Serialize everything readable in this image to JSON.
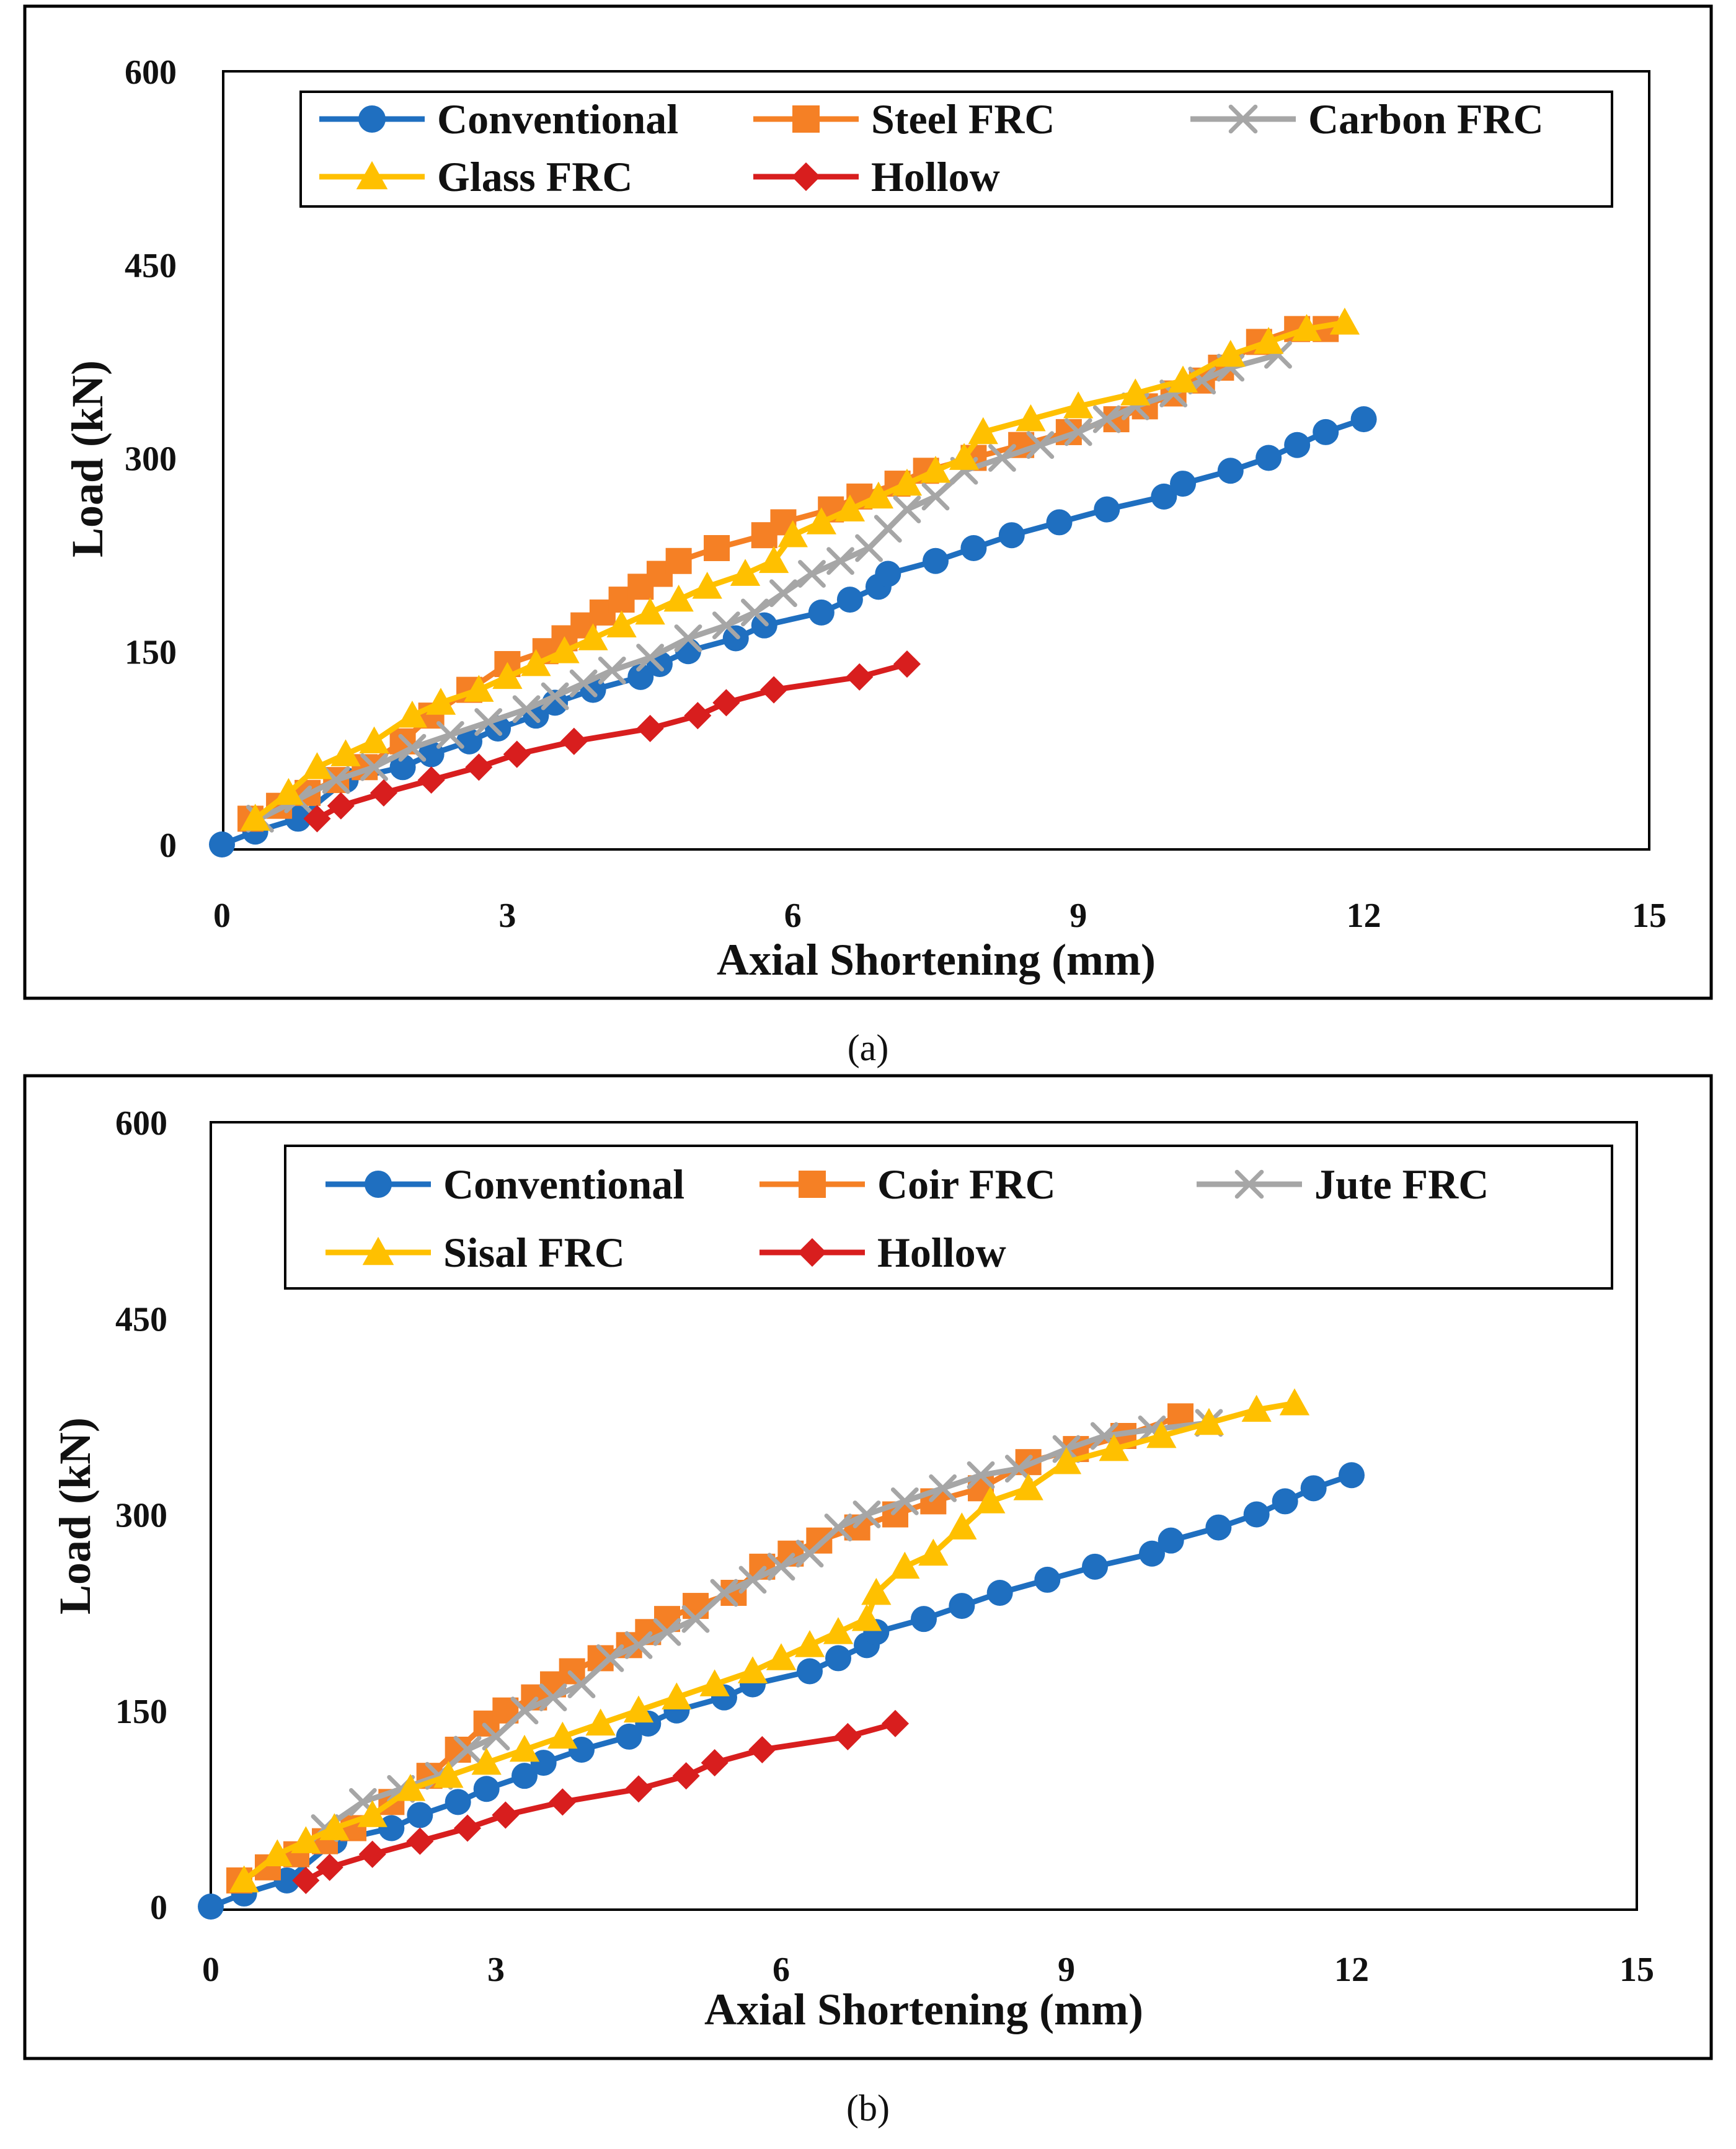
{
  "figure": {
    "panels": [
      "(a)",
      "(b)"
    ]
  },
  "colors": {
    "Conventional": "#1F6FC0",
    "Steel FRC": "#F58025",
    "Carbon FRC": "#A6A6A6",
    "Glass FRC": "#FFC000",
    "Hollow": "#D81E1E",
    "Coir FRC": "#F58025",
    "Jute FRC": "#A6A6A6",
    "Sisal FRC": "#FFC000"
  },
  "chart_data": [
    {
      "type": "line",
      "caption": "(a)",
      "xlabel": "Axial Shortening (mm)",
      "ylabel": "Load (kN)",
      "xlim": [
        0,
        15
      ],
      "ylim": [
        0,
        600
      ],
      "xticks": [
        "0",
        "3",
        "6",
        "9",
        "12",
        "15"
      ],
      "yticks": [
        "0",
        "150",
        "300",
        "450",
        "600"
      ],
      "grid": false,
      "legend_position": "top",
      "series": [
        {
          "name": "Conventional",
          "marker": "circle",
          "x": [
            0,
            0.35,
            0.8,
            1.3,
            1.9,
            2.2,
            2.6,
            2.9,
            3.3,
            3.5,
            3.9,
            4.4,
            4.6,
            4.9,
            5.4,
            5.7,
            6.3,
            6.6,
            6.9,
            7.0,
            7.5,
            7.9,
            8.3,
            8.8,
            9.3,
            9.9,
            10.1,
            10.6,
            11.0,
            11.3,
            11.6,
            12.0
          ],
          "y": [
            0,
            10,
            20,
            50,
            60,
            70,
            80,
            90,
            100,
            110,
            120,
            130,
            140,
            150,
            160,
            170,
            180,
            190,
            200,
            210,
            220,
            230,
            240,
            250,
            260,
            270,
            280,
            290,
            300,
            310,
            320,
            330
          ]
        },
        {
          "name": "Steel FRC",
          "marker": "square",
          "x": [
            0.3,
            0.6,
            0.9,
            1.2,
            1.5,
            1.9,
            2.2,
            2.6,
            3.0,
            3.4,
            3.6,
            3.8,
            4.0,
            4.2,
            4.4,
            4.6,
            4.8,
            5.2,
            5.7,
            5.9,
            6.4,
            6.7,
            7.1,
            7.4,
            7.9,
            8.4,
            8.9,
            9.4,
            9.7,
            10.0,
            10.3,
            10.5,
            10.9,
            11.3,
            11.6
          ],
          "y": [
            20,
            30,
            40,
            50,
            60,
            80,
            100,
            120,
            140,
            150,
            160,
            170,
            180,
            190,
            200,
            210,
            220,
            230,
            240,
            250,
            260,
            270,
            280,
            290,
            300,
            310,
            320,
            330,
            340,
            350,
            360,
            370,
            390,
            400,
            400
          ]
        },
        {
          "name": "Carbon FRC",
          "marker": "x",
          "x": [
            0.4,
            0.8,
            1.2,
            1.6,
            2.0,
            2.4,
            2.8,
            3.2,
            3.5,
            3.8,
            4.1,
            4.5,
            4.9,
            5.3,
            5.6,
            5.9,
            6.2,
            6.5,
            6.8,
            7.0,
            7.2,
            7.5,
            7.8,
            8.2,
            8.6,
            9.0,
            9.3,
            9.6,
            10.0,
            10.3,
            10.6,
            11.1
          ],
          "y": [
            20,
            35,
            50,
            60,
            75,
            85,
            95,
            105,
            115,
            125,
            135,
            145,
            160,
            170,
            180,
            195,
            210,
            220,
            230,
            245,
            260,
            270,
            290,
            300,
            310,
            320,
            330,
            340,
            350,
            360,
            370,
            380
          ]
        },
        {
          "name": "Glass FRC",
          "marker": "triangle",
          "x": [
            0.35,
            0.7,
            1.0,
            1.3,
            1.6,
            2.0,
            2.3,
            2.7,
            3.0,
            3.3,
            3.6,
            3.9,
            4.2,
            4.5,
            4.8,
            5.1,
            5.5,
            5.8,
            6.0,
            6.3,
            6.6,
            6.9,
            7.2,
            7.5,
            7.8,
            8.0,
            8.5,
            9.0,
            9.6,
            10.1,
            10.6,
            11.0,
            11.4,
            11.8
          ],
          "y": [
            20,
            40,
            60,
            70,
            80,
            100,
            110,
            120,
            130,
            140,
            150,
            160,
            170,
            180,
            190,
            200,
            210,
            220,
            240,
            250,
            260,
            270,
            280,
            290,
            300,
            320,
            330,
            340,
            350,
            360,
            380,
            390,
            400,
            405
          ]
        },
        {
          "name": "Hollow",
          "marker": "diamond",
          "x": [
            1.0,
            1.25,
            1.7,
            2.2,
            2.7,
            3.1,
            3.7,
            4.5,
            5.0,
            5.3,
            5.8,
            6.7,
            7.2
          ],
          "y": [
            20,
            30,
            40,
            50,
            60,
            70,
            80,
            90,
            100,
            110,
            120,
            130,
            140
          ]
        }
      ]
    },
    {
      "type": "line",
      "caption": "(b)",
      "xlabel": "Axial Shortening (mm)",
      "ylabel": "Load (kN)",
      "xlim": [
        0,
        15
      ],
      "ylim": [
        0,
        600
      ],
      "xticks": [
        "0",
        "3",
        "6",
        "9",
        "12",
        "15"
      ],
      "yticks": [
        "0",
        "150",
        "300",
        "450",
        "600"
      ],
      "grid": false,
      "legend_position": "top",
      "series": [
        {
          "name": "Conventional",
          "marker": "circle",
          "x": [
            0,
            0.35,
            0.8,
            1.3,
            1.9,
            2.2,
            2.6,
            2.9,
            3.3,
            3.5,
            3.9,
            4.4,
            4.6,
            4.9,
            5.4,
            5.7,
            6.3,
            6.6,
            6.9,
            7.0,
            7.5,
            7.9,
            8.3,
            8.8,
            9.3,
            9.9,
            10.1,
            10.6,
            11.0,
            11.3,
            11.6,
            12.0
          ],
          "y": [
            0,
            10,
            20,
            50,
            60,
            70,
            80,
            90,
            100,
            110,
            120,
            130,
            140,
            150,
            160,
            170,
            180,
            190,
            200,
            210,
            220,
            230,
            240,
            250,
            260,
            270,
            280,
            290,
            300,
            310,
            320,
            330
          ]
        },
        {
          "name": "Coir FRC",
          "marker": "square",
          "x": [
            0.3,
            0.6,
            0.9,
            1.2,
            1.5,
            1.9,
            2.3,
            2.6,
            2.9,
            3.1,
            3.4,
            3.6,
            3.8,
            4.1,
            4.4,
            4.6,
            4.8,
            5.1,
            5.5,
            5.8,
            6.1,
            6.4,
            6.8,
            7.2,
            7.6,
            8.1,
            8.6,
            9.1,
            9.6,
            10.2
          ],
          "y": [
            20,
            30,
            40,
            50,
            60,
            80,
            100,
            120,
            140,
            150,
            160,
            170,
            180,
            190,
            200,
            210,
            220,
            230,
            240,
            260,
            270,
            280,
            290,
            300,
            310,
            320,
            340,
            350,
            360,
            375
          ]
        },
        {
          "name": "Jute FRC",
          "marker": "x",
          "x": [
            1.2,
            1.6,
            2.0,
            2.4,
            2.7,
            3.0,
            3.3,
            3.6,
            3.9,
            4.2,
            4.5,
            4.8,
            5.1,
            5.4,
            5.7,
            6.0,
            6.3,
            6.6,
            6.9,
            7.3,
            7.7,
            8.1,
            8.5,
            9.0,
            9.4,
            9.9,
            10.5
          ],
          "y": [
            60,
            80,
            90,
            100,
            120,
            130,
            150,
            160,
            170,
            190,
            200,
            210,
            220,
            240,
            250,
            260,
            270,
            290,
            300,
            310,
            320,
            330,
            335,
            350,
            360,
            365,
            370
          ]
        },
        {
          "name": "Sisal FRC",
          "marker": "triangle",
          "x": [
            0.35,
            0.7,
            1.0,
            1.3,
            1.7,
            2.1,
            2.5,
            2.9,
            3.3,
            3.7,
            4.1,
            4.5,
            4.9,
            5.3,
            5.7,
            6.0,
            6.3,
            6.6,
            6.9,
            7.0,
            7.3,
            7.6,
            7.9,
            8.2,
            8.6,
            9.0,
            9.5,
            10.0,
            10.5,
            11.0,
            11.4
          ],
          "y": [
            20,
            40,
            50,
            60,
            70,
            90,
            100,
            110,
            120,
            130,
            140,
            150,
            160,
            170,
            180,
            190,
            200,
            210,
            220,
            240,
            260,
            270,
            290,
            310,
            320,
            340,
            350,
            360,
            370,
            380,
            385
          ]
        },
        {
          "name": "Hollow",
          "marker": "diamond",
          "x": [
            1.0,
            1.25,
            1.7,
            2.2,
            2.7,
            3.1,
            3.7,
            4.5,
            5.0,
            5.3,
            5.8,
            6.7,
            7.2
          ],
          "y": [
            20,
            30,
            40,
            50,
            60,
            70,
            80,
            90,
            100,
            110,
            120,
            130,
            140
          ]
        }
      ]
    }
  ]
}
